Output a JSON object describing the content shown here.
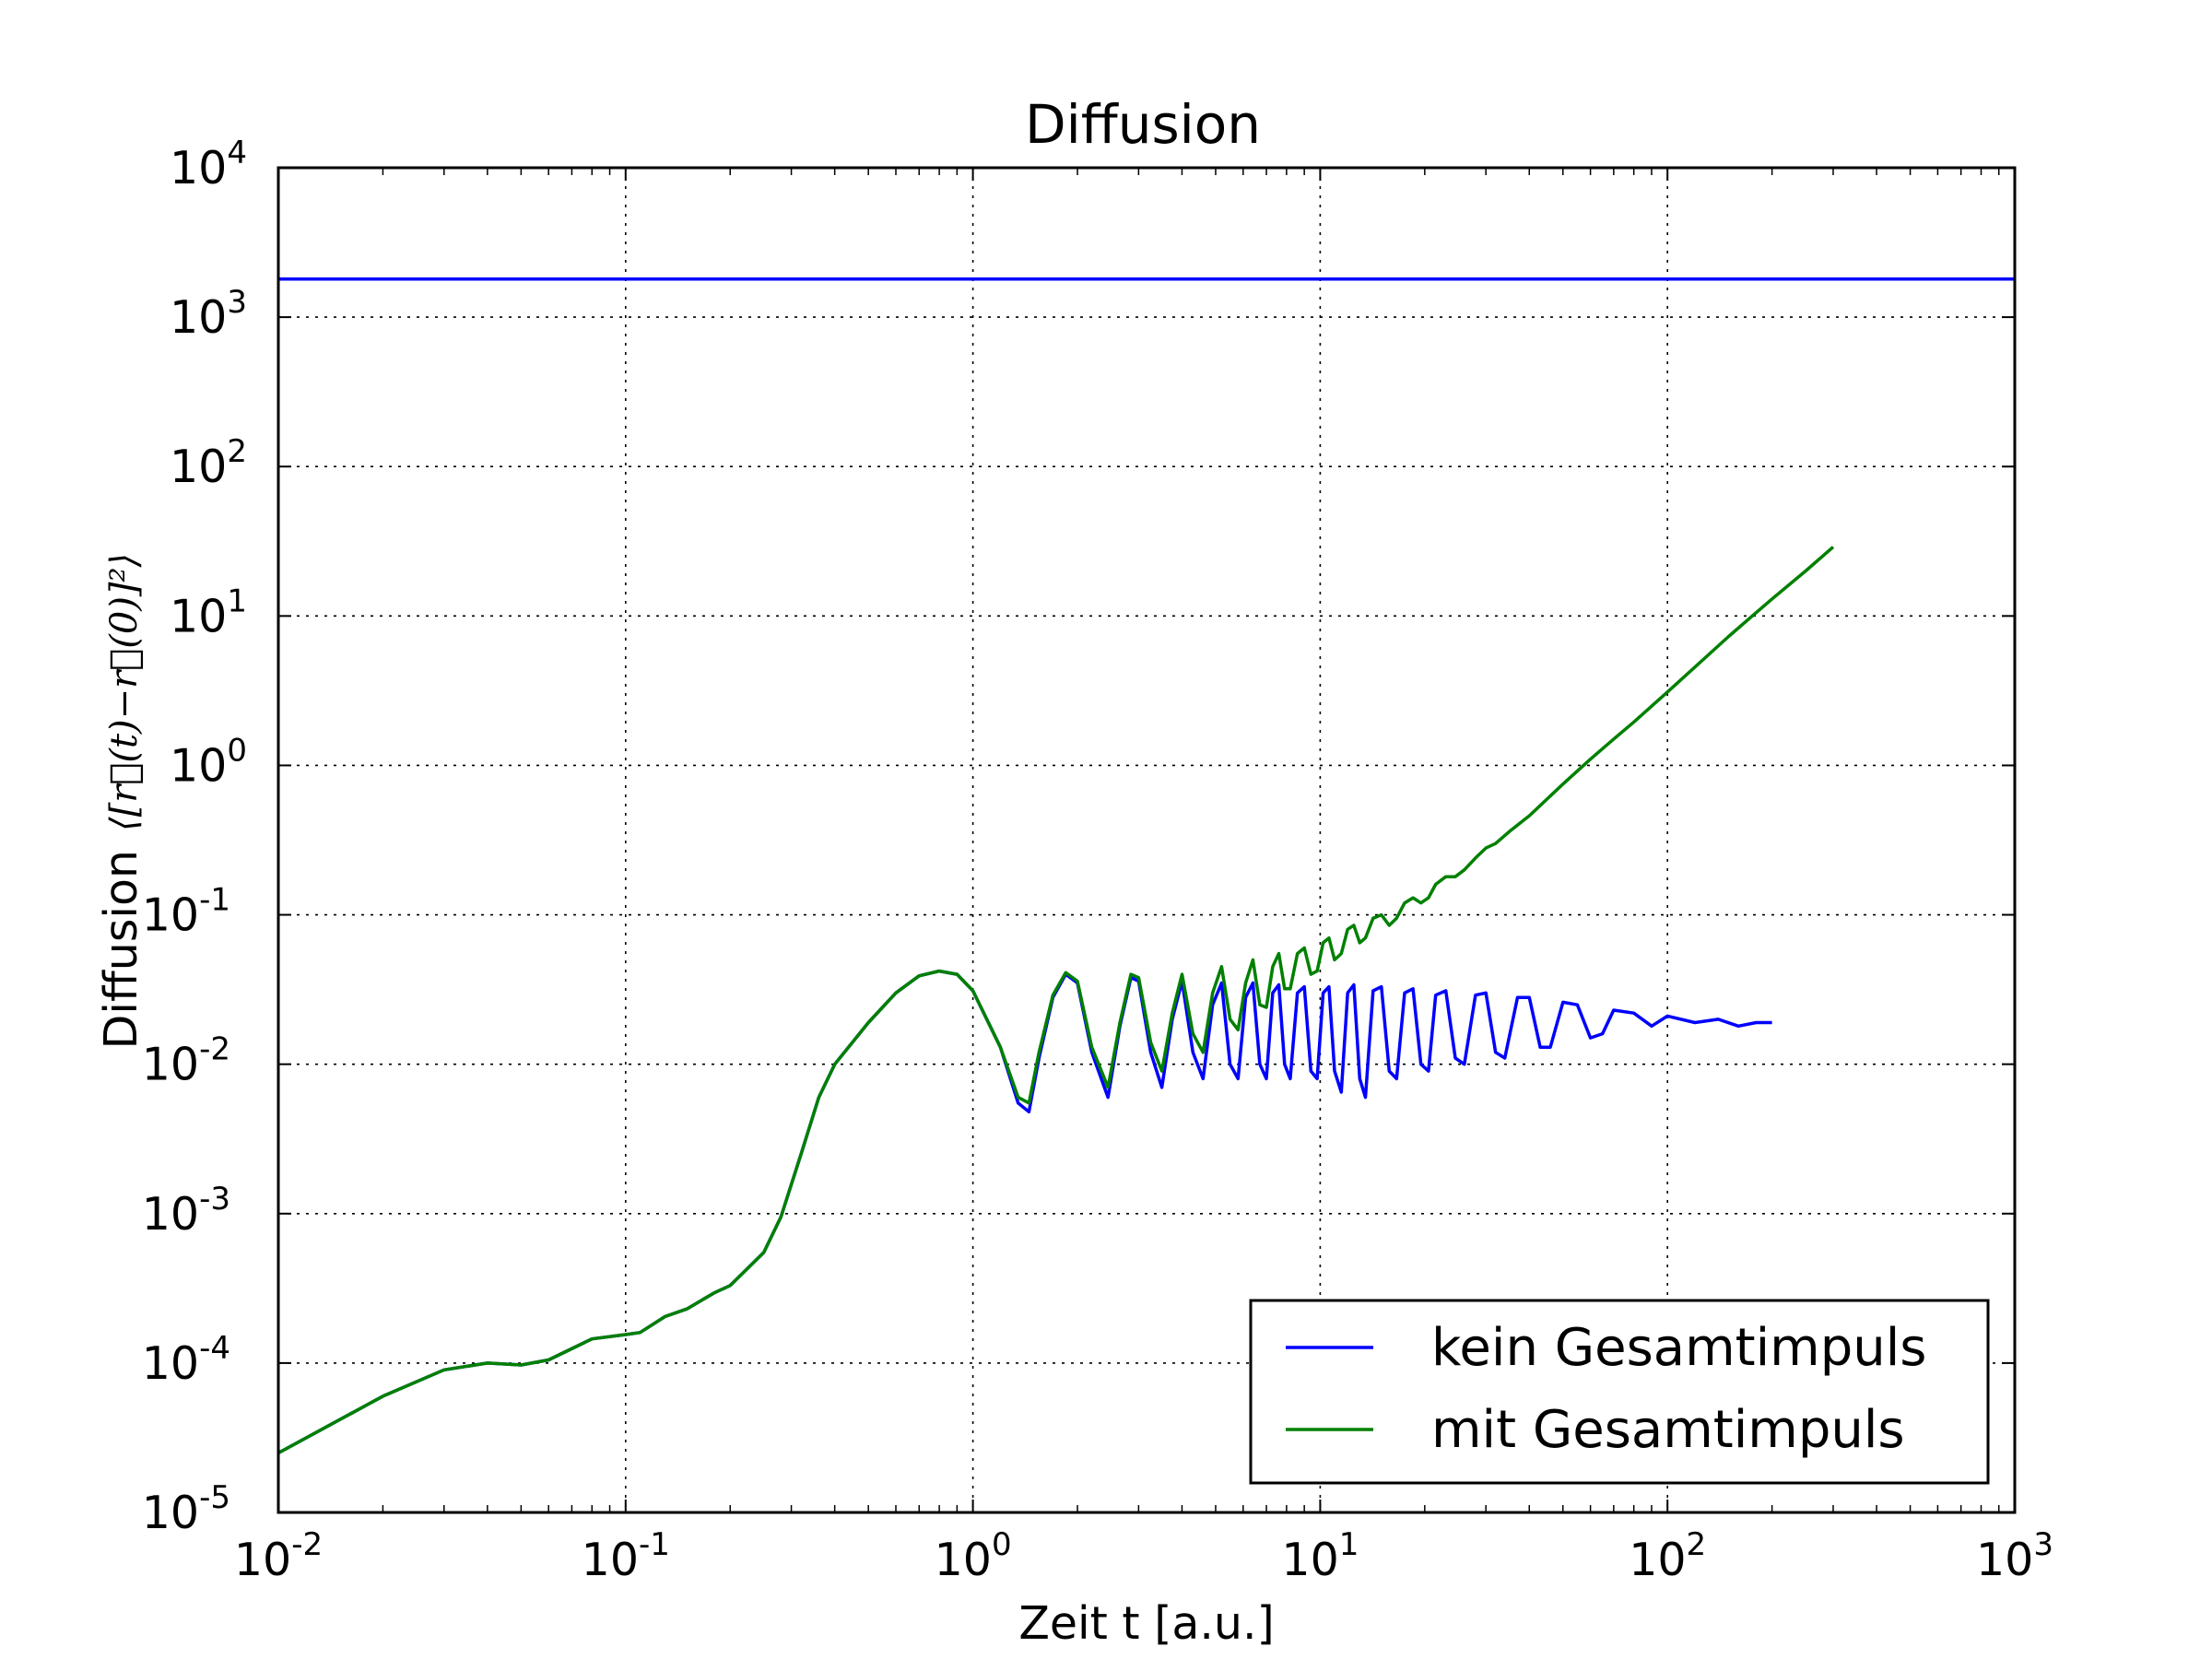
{
  "chart_data": {
    "type": "line",
    "title": "Diffusion",
    "xlabel": "Zeit t [a.u.]",
    "ylabel": "Diffusion",
    "ylabel_math": "⟨[r⃗(t)−r⃗(0)]²⟩",
    "x_scale": "log",
    "y_scale": "log",
    "xlim": [
      0.01,
      1000
    ],
    "ylim": [
      1e-05,
      10000
    ],
    "grid": true,
    "legend_position": "lower-right",
    "x_ticks": [
      {
        "base": "10",
        "exp": "-2",
        "value": 0.01
      },
      {
        "base": "10",
        "exp": "-1",
        "value": 0.1
      },
      {
        "base": "10",
        "exp": "0",
        "value": 1
      },
      {
        "base": "10",
        "exp": "1",
        "value": 10
      },
      {
        "base": "10",
        "exp": "2",
        "value": 100
      },
      {
        "base": "10",
        "exp": "3",
        "value": 1000
      }
    ],
    "y_ticks": [
      {
        "base": "10",
        "exp": "-5",
        "value": 1e-05
      },
      {
        "base": "10",
        "exp": "-4",
        "value": 0.0001
      },
      {
        "base": "10",
        "exp": "-3",
        "value": 0.001
      },
      {
        "base": "10",
        "exp": "-2",
        "value": 0.01
      },
      {
        "base": "10",
        "exp": "-1",
        "value": 0.1
      },
      {
        "base": "10",
        "exp": "0",
        "value": 1
      },
      {
        "base": "10",
        "exp": "1",
        "value": 10
      },
      {
        "base": "10",
        "exp": "2",
        "value": 100
      },
      {
        "base": "10",
        "exp": "3",
        "value": 1000
      },
      {
        "base": "10",
        "exp": "4",
        "value": 10000
      }
    ],
    "series": [
      {
        "name": "kein Gesamtimpuls",
        "color": "#0000ff",
        "points": [
          [
            0.01,
            2.5e-05
          ],
          [
            0.02,
            6e-05
          ],
          [
            0.03,
            9e-05
          ],
          [
            0.04,
            0.0001
          ],
          [
            0.05,
            9.7e-05
          ],
          [
            0.06,
            0.000105
          ],
          [
            0.08,
            0.000145
          ],
          [
            0.1,
            0.000155
          ],
          [
            0.11,
            0.00016
          ],
          [
            0.13,
            0.000205
          ],
          [
            0.15,
            0.00023
          ],
          [
            0.18,
            0.000295
          ],
          [
            0.2,
            0.00033
          ],
          [
            0.22,
            0.00041
          ],
          [
            0.25,
            0.00055
          ],
          [
            0.28,
            0.00095
          ],
          [
            0.32,
            0.0025
          ],
          [
            0.36,
            0.006
          ],
          [
            0.4,
            0.01
          ],
          [
            0.5,
            0.019
          ],
          [
            0.6,
            0.03
          ],
          [
            0.7,
            0.039
          ],
          [
            0.8,
            0.042
          ],
          [
            0.9,
            0.04
          ],
          [
            1.0,
            0.031
          ],
          [
            1.2,
            0.013
          ],
          [
            1.35,
            0.0055
          ],
          [
            1.45,
            0.0048
          ],
          [
            1.55,
            0.011
          ],
          [
            1.7,
            0.028
          ],
          [
            1.85,
            0.04
          ],
          [
            2.0,
            0.035
          ],
          [
            2.2,
            0.012
          ],
          [
            2.45,
            0.006
          ],
          [
            2.65,
            0.018
          ],
          [
            2.85,
            0.038
          ],
          [
            3.0,
            0.036
          ],
          [
            3.25,
            0.012
          ],
          [
            3.5,
            0.007
          ],
          [
            3.75,
            0.02
          ],
          [
            4.0,
            0.036
          ],
          [
            4.3,
            0.012
          ],
          [
            4.6,
            0.008
          ],
          [
            4.9,
            0.025
          ],
          [
            5.2,
            0.035
          ],
          [
            5.5,
            0.01
          ],
          [
            5.8,
            0.008
          ],
          [
            6.1,
            0.028
          ],
          [
            6.4,
            0.035
          ],
          [
            6.7,
            0.01
          ],
          [
            7.0,
            0.008
          ],
          [
            7.3,
            0.03
          ],
          [
            7.6,
            0.034
          ],
          [
            7.9,
            0.01
          ],
          [
            8.2,
            0.008
          ],
          [
            8.6,
            0.03
          ],
          [
            9.0,
            0.033
          ],
          [
            9.4,
            0.009
          ],
          [
            9.8,
            0.008
          ],
          [
            10.2,
            0.03
          ],
          [
            10.6,
            0.033
          ],
          [
            11.0,
            0.009
          ],
          [
            11.5,
            0.0065
          ],
          [
            12.0,
            0.03
          ],
          [
            12.5,
            0.034
          ],
          [
            13.0,
            0.008
          ],
          [
            13.5,
            0.006
          ],
          [
            14.2,
            0.031
          ],
          [
            15.0,
            0.033
          ],
          [
            15.8,
            0.009
          ],
          [
            16.6,
            0.008
          ],
          [
            17.5,
            0.03
          ],
          [
            18.5,
            0.032
          ],
          [
            19.5,
            0.01
          ],
          [
            20.5,
            0.009
          ],
          [
            21.5,
            0.029
          ],
          [
            23.0,
            0.031
          ],
          [
            24.5,
            0.011
          ],
          [
            26.0,
            0.01
          ],
          [
            28.0,
            0.029
          ],
          [
            30.0,
            0.03
          ],
          [
            32.0,
            0.012
          ],
          [
            34.0,
            0.011
          ],
          [
            37.0,
            0.028
          ],
          [
            40.0,
            0.028
          ],
          [
            43.0,
            0.013
          ],
          [
            46.0,
            0.013
          ],
          [
            50.0,
            0.026
          ],
          [
            55.0,
            0.025
          ],
          [
            60.0,
            0.015
          ],
          [
            65.0,
            0.016
          ],
          [
            70.0,
            0.023
          ],
          [
            80.0,
            0.022
          ],
          [
            90.0,
            0.018
          ],
          [
            100.0,
            0.021
          ],
          [
            120.0,
            0.019
          ],
          [
            140.0,
            0.02
          ],
          [
            160.0,
            0.018
          ],
          [
            180.0,
            0.019
          ],
          [
            200.0,
            0.019
          ]
        ]
      },
      {
        "name": "mit Gesamtimpuls",
        "color": "#008000",
        "points": [
          [
            0.01,
            2.5e-05
          ],
          [
            0.02,
            6e-05
          ],
          [
            0.03,
            9e-05
          ],
          [
            0.04,
            0.0001
          ],
          [
            0.05,
            9.7e-05
          ],
          [
            0.06,
            0.000105
          ],
          [
            0.08,
            0.000145
          ],
          [
            0.1,
            0.000155
          ],
          [
            0.11,
            0.00016
          ],
          [
            0.13,
            0.000205
          ],
          [
            0.15,
            0.00023
          ],
          [
            0.18,
            0.000295
          ],
          [
            0.2,
            0.00033
          ],
          [
            0.22,
            0.00041
          ],
          [
            0.25,
            0.00055
          ],
          [
            0.28,
            0.00095
          ],
          [
            0.32,
            0.0025
          ],
          [
            0.36,
            0.006
          ],
          [
            0.4,
            0.01
          ],
          [
            0.5,
            0.019
          ],
          [
            0.6,
            0.03
          ],
          [
            0.7,
            0.039
          ],
          [
            0.8,
            0.042
          ],
          [
            0.9,
            0.04
          ],
          [
            1.0,
            0.031
          ],
          [
            1.2,
            0.013
          ],
          [
            1.35,
            0.006
          ],
          [
            1.45,
            0.0055
          ],
          [
            1.55,
            0.012
          ],
          [
            1.7,
            0.029
          ],
          [
            1.85,
            0.041
          ],
          [
            2.0,
            0.036
          ],
          [
            2.2,
            0.013
          ],
          [
            2.45,
            0.007
          ],
          [
            2.65,
            0.019
          ],
          [
            2.85,
            0.04
          ],
          [
            3.0,
            0.038
          ],
          [
            3.25,
            0.014
          ],
          [
            3.5,
            0.009
          ],
          [
            3.75,
            0.022
          ],
          [
            4.0,
            0.04
          ],
          [
            4.3,
            0.016
          ],
          [
            4.6,
            0.012
          ],
          [
            4.9,
            0.03
          ],
          [
            5.2,
            0.045
          ],
          [
            5.5,
            0.02
          ],
          [
            5.8,
            0.017
          ],
          [
            6.1,
            0.035
          ],
          [
            6.4,
            0.05
          ],
          [
            6.7,
            0.025
          ],
          [
            7.0,
            0.024
          ],
          [
            7.3,
            0.045
          ],
          [
            7.6,
            0.055
          ],
          [
            7.9,
            0.032
          ],
          [
            8.2,
            0.032
          ],
          [
            8.6,
            0.055
          ],
          [
            9.0,
            0.06
          ],
          [
            9.4,
            0.04
          ],
          [
            9.8,
            0.042
          ],
          [
            10.2,
            0.065
          ],
          [
            10.6,
            0.07
          ],
          [
            11.0,
            0.05
          ],
          [
            11.5,
            0.055
          ],
          [
            12.0,
            0.08
          ],
          [
            12.5,
            0.085
          ],
          [
            13.0,
            0.065
          ],
          [
            13.5,
            0.07
          ],
          [
            14.2,
            0.095
          ],
          [
            15.0,
            0.1
          ],
          [
            15.8,
            0.085
          ],
          [
            16.6,
            0.095
          ],
          [
            17.5,
            0.12
          ],
          [
            18.5,
            0.13
          ],
          [
            19.5,
            0.12
          ],
          [
            20.5,
            0.13
          ],
          [
            21.5,
            0.16
          ],
          [
            23.0,
            0.18
          ],
          [
            24.5,
            0.18
          ],
          [
            26.0,
            0.2
          ],
          [
            28.0,
            0.24
          ],
          [
            30.0,
            0.28
          ],
          [
            32.0,
            0.3
          ],
          [
            35.0,
            0.36
          ],
          [
            40.0,
            0.46
          ],
          [
            50.0,
            0.75
          ],
          [
            60.0,
            1.1
          ],
          [
            70.0,
            1.5
          ],
          [
            80.0,
            1.95
          ],
          [
            100.0,
            3.1
          ],
          [
            150.0,
            7.3
          ],
          [
            200.0,
            13.0
          ],
          [
            250.0,
            20.0
          ],
          [
            300.0,
            29.0
          ]
        ]
      },
      {
        "name": "",
        "color": "#0000ff",
        "points": [
          [
            0.01,
            1800
          ],
          [
            1000,
            1800
          ]
        ]
      }
    ]
  }
}
